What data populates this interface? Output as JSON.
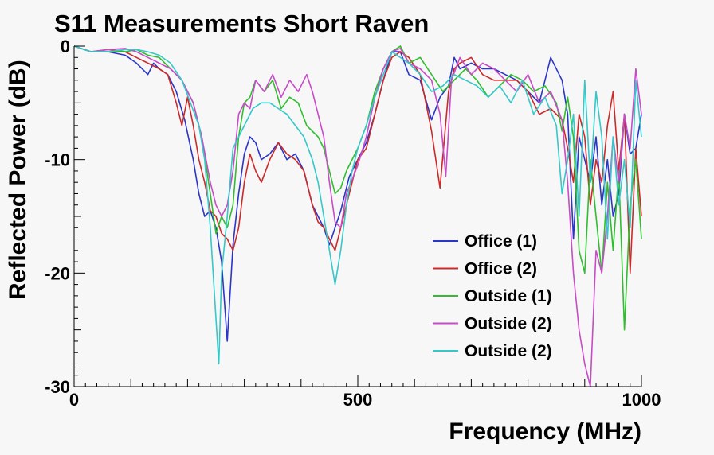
{
  "chart_data": {
    "type": "line",
    "title": "S11 Measurements Short Raven",
    "xlabel": "Frequency (MHz)",
    "ylabel": "Reflected Power (dB)",
    "xlim": [
      0,
      1000
    ],
    "ylim": [
      -30,
      0
    ],
    "x_ticks": [
      0,
      500,
      1000
    ],
    "y_ticks": [
      0,
      -10,
      -20,
      -30
    ],
    "legend_position": "bottom-right",
    "grid": false,
    "series": [
      {
        "name": "Office (1)",
        "color": "#2b36c8",
        "x": [
          0,
          30,
          60,
          90,
          110,
          130,
          140,
          150,
          165,
          180,
          195,
          210,
          220,
          230,
          240,
          250,
          260,
          270,
          280,
          290,
          300,
          310,
          320,
          330,
          345,
          360,
          375,
          390,
          405,
          420,
          430,
          440,
          450,
          460,
          470,
          485,
          500,
          515,
          530,
          545,
          560,
          575,
          590,
          610,
          630,
          645,
          660,
          670,
          680,
          700,
          720,
          740,
          760,
          780,
          800,
          820,
          840,
          860,
          870,
          880,
          890,
          900,
          910,
          920,
          930,
          940,
          950,
          960,
          970,
          980,
          990,
          1000
        ],
        "y": [
          0,
          -0.5,
          -0.5,
          -0.8,
          -1.5,
          -2.5,
          -1.5,
          -2.0,
          -2.5,
          -4.0,
          -6.5,
          -10.0,
          -13.0,
          -15.0,
          -14.5,
          -16.0,
          -19.0,
          -26.0,
          -17.5,
          -13.0,
          -9.5,
          -8.0,
          -8.5,
          -10.0,
          -9.5,
          -8.5,
          -10.0,
          -9.5,
          -11.0,
          -14.0,
          -15.0,
          -16.0,
          -17.5,
          -16.0,
          -14.5,
          -11.5,
          -10.0,
          -8.5,
          -6.0,
          -3.0,
          -0.5,
          -0.5,
          -2.5,
          -3.0,
          -6.5,
          -4.5,
          -3.5,
          -1.0,
          -2.0,
          -1.5,
          -2.0,
          -2.0,
          -2.5,
          -3.0,
          -4.0,
          -5.0,
          -1.0,
          -3.0,
          -6.0,
          -17.0,
          -8.0,
          -10.0,
          -12.0,
          -8.0,
          -14.0,
          -10.0,
          -15.0,
          -13.0,
          -6.0,
          -9.5,
          -9.0,
          -6.0
        ]
      },
      {
        "name": "Office (2)",
        "color": "#cc2a2a",
        "x": [
          0,
          30,
          60,
          90,
          110,
          130,
          150,
          165,
          180,
          190,
          200,
          210,
          220,
          230,
          240,
          250,
          260,
          270,
          280,
          290,
          300,
          310,
          320,
          330,
          345,
          360,
          375,
          390,
          405,
          420,
          430,
          440,
          450,
          460,
          470,
          485,
          500,
          515,
          530,
          545,
          560,
          575,
          590,
          610,
          630,
          645,
          660,
          670,
          680,
          700,
          720,
          740,
          760,
          780,
          800,
          820,
          840,
          860,
          870,
          880,
          890,
          900,
          910,
          920,
          930,
          940,
          950,
          960,
          970,
          980,
          990,
          1000
        ],
        "y": [
          0,
          -0.5,
          -0.3,
          -0.5,
          -1.0,
          -1.5,
          -2.0,
          -2.5,
          -5.0,
          -7.0,
          -4.5,
          -7.0,
          -10.0,
          -12.0,
          -14.5,
          -15.0,
          -16.5,
          -17.0,
          -18.0,
          -16.0,
          -12.0,
          -9.5,
          -11.0,
          -12.0,
          -10.0,
          -8.5,
          -9.5,
          -10.0,
          -11.0,
          -14.0,
          -15.5,
          -16.0,
          -17.0,
          -18.0,
          -16.0,
          -13.0,
          -10.0,
          -9.0,
          -6.0,
          -3.0,
          -1.0,
          -0.5,
          -1.0,
          -2.5,
          -7.5,
          -12.5,
          -4.0,
          -2.0,
          -1.5,
          -1.0,
          -2.5,
          -3.0,
          -3.0,
          -3.0,
          -4.0,
          -6.0,
          -5.5,
          -6.5,
          -9.0,
          -12.0,
          -6.0,
          -8.0,
          -14.0,
          -10.0,
          -12.0,
          -7.0,
          -4.0,
          -11.0,
          -6.0,
          -20.0,
          -9.0,
          -15.0
        ]
      },
      {
        "name": "Outside (1)",
        "color": "#2fbe2f",
        "x": [
          0,
          30,
          60,
          90,
          110,
          130,
          150,
          170,
          190,
          210,
          225,
          240,
          250,
          260,
          270,
          280,
          290,
          300,
          310,
          320,
          335,
          350,
          365,
          380,
          395,
          410,
          420,
          430,
          440,
          450,
          460,
          470,
          480,
          500,
          515,
          530,
          545,
          560,
          575,
          590,
          610,
          630,
          650,
          670,
          690,
          710,
          730,
          750,
          770,
          790,
          810,
          830,
          850,
          860,
          870,
          880,
          890,
          900,
          910,
          920,
          930,
          940,
          950,
          960,
          970,
          980,
          990,
          1000
        ],
        "y": [
          0,
          -0.5,
          -0.5,
          -0.5,
          -0.3,
          -0.8,
          -1.0,
          -2.0,
          -3.0,
          -5.0,
          -8.0,
          -13.0,
          -16.5,
          -15.0,
          -16.0,
          -14.0,
          -8.0,
          -5.0,
          -4.5,
          -3.0,
          -4.0,
          -3.0,
          -5.5,
          -4.5,
          -5.0,
          -7.0,
          -7.5,
          -8.0,
          -9.0,
          -11.0,
          -13.0,
          -12.5,
          -11.0,
          -9.0,
          -7.0,
          -4.0,
          -2.0,
          -0.5,
          0,
          -1.5,
          -1.0,
          -2.5,
          -4.0,
          -3.0,
          -2.0,
          -3.0,
          -4.5,
          -3.5,
          -2.5,
          -3.0,
          -4.0,
          -3.5,
          -5.0,
          -7.5,
          -4.5,
          -8.0,
          -18.0,
          -20.0,
          -10.0,
          -15.0,
          -20.0,
          -12.0,
          -18.0,
          -11.0,
          -25.0,
          -14.0,
          -10.0,
          -17.0
        ]
      },
      {
        "name": "Outside (2)",
        "color": "#c84bc8",
        "x": [
          0,
          30,
          60,
          90,
          110,
          130,
          150,
          170,
          190,
          210,
          225,
          240,
          250,
          260,
          270,
          280,
          290,
          300,
          310,
          320,
          335,
          350,
          365,
          380,
          395,
          410,
          420,
          430,
          440,
          450,
          460,
          470,
          480,
          500,
          515,
          530,
          545,
          560,
          575,
          590,
          610,
          630,
          645,
          655,
          665,
          680,
          700,
          720,
          740,
          760,
          780,
          800,
          820,
          840,
          860,
          870,
          880,
          890,
          900,
          910,
          920,
          930,
          940,
          950,
          960,
          970,
          980,
          990,
          1000
        ],
        "y": [
          0,
          -0.5,
          -0.3,
          -0.2,
          -0.5,
          -1.0,
          -1.5,
          -2.0,
          -3.0,
          -5.0,
          -8.0,
          -12.0,
          -14.0,
          -15.0,
          -14.0,
          -11.0,
          -6.0,
          -5.0,
          -5.5,
          -3.0,
          -4.0,
          -2.5,
          -4.5,
          -3.0,
          -4.0,
          -2.5,
          -4.0,
          -6.0,
          -8.0,
          -12.0,
          -15.5,
          -16.0,
          -13.0,
          -10.5,
          -8.0,
          -4.5,
          -2.0,
          -0.5,
          -0.2,
          -1.5,
          -2.0,
          -3.0,
          -6.0,
          -11.5,
          -3.0,
          -1.0,
          -2.5,
          -1.5,
          -2.0,
          -3.0,
          -4.0,
          -2.5,
          -5.0,
          -4.0,
          -6.5,
          -12.0,
          -20.0,
          -25.0,
          -28.0,
          -30.0,
          -18.0,
          -20.0,
          -15.0,
          -8.0,
          -12.0,
          -6.0,
          -9.0,
          -2.0,
          -6.0
        ]
      },
      {
        "name": "Outside (2)",
        "color": "#35c8c8",
        "x": [
          0,
          30,
          60,
          90,
          110,
          130,
          150,
          170,
          190,
          205,
          220,
          230,
          240,
          250,
          255,
          260,
          270,
          280,
          290,
          300,
          315,
          330,
          345,
          360,
          375,
          390,
          405,
          420,
          430,
          440,
          450,
          460,
          470,
          480,
          490,
          500,
          515,
          530,
          545,
          560,
          575,
          590,
          610,
          630,
          650,
          670,
          690,
          710,
          730,
          750,
          770,
          790,
          810,
          830,
          850,
          860,
          870,
          880,
          890,
          900,
          910,
          920,
          930,
          940,
          950,
          960,
          970,
          980,
          990,
          1000
        ],
        "y": [
          0,
          -0.5,
          -0.5,
          -0.3,
          -0.3,
          -0.5,
          -0.8,
          -1.5,
          -3.0,
          -5.0,
          -7.0,
          -10.0,
          -16.0,
          -24.0,
          -28.0,
          -20.0,
          -15.0,
          -9.0,
          -8.0,
          -7.0,
          -5.5,
          -5.0,
          -5.0,
          -5.5,
          -6.0,
          -7.0,
          -8.0,
          -10.0,
          -12.0,
          -15.0,
          -18.0,
          -21.0,
          -18.0,
          -14.0,
          -11.0,
          -9.0,
          -7.0,
          -4.5,
          -2.5,
          -0.5,
          -1.0,
          -1.5,
          -2.5,
          -4.0,
          -3.5,
          -2.5,
          -3.0,
          -3.5,
          -4.5,
          -3.5,
          -5.0,
          -3.0,
          -6.0,
          -4.5,
          -7.0,
          -13.0,
          -10.0,
          -6.0,
          -15.0,
          -3.0,
          -12.0,
          -4.0,
          -8.0,
          -17.0,
          -8.0,
          -14.0,
          -10.0,
          -16.0,
          -3.0,
          -8.0
        ]
      }
    ]
  }
}
